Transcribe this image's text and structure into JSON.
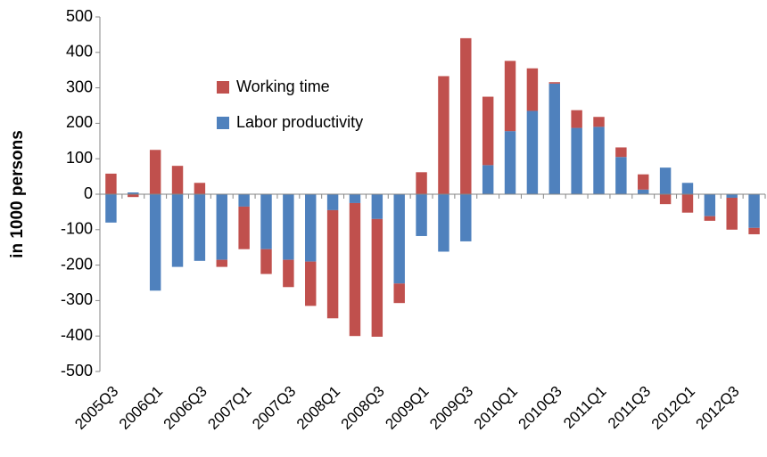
{
  "chart_data": {
    "type": "bar",
    "stacked": true,
    "y_label": "in 1000 persons",
    "categories": [
      "2005Q3",
      null,
      "2006Q1",
      null,
      "2006Q3",
      null,
      "2007Q1",
      null,
      "2007Q3",
      null,
      "2008Q1",
      null,
      "2008Q3",
      null,
      "2009Q1",
      null,
      "2009Q3",
      null,
      "2010Q1",
      null,
      "2010Q3",
      null,
      "2011Q1",
      null,
      "2011Q3",
      null,
      "2012Q1",
      null,
      "2012Q3",
      null
    ],
    "series": [
      {
        "name": "Working time",
        "color": "#c0504d",
        "values": [
          58,
          -8,
          125,
          80,
          32,
          -20,
          -120,
          -70,
          -77,
          -125,
          -305,
          -375,
          -332,
          -55,
          62,
          333,
          440,
          193,
          198,
          120,
          4,
          50,
          28,
          27,
          43,
          -28,
          -52,
          -13,
          -90,
          -18
        ]
      },
      {
        "name": "Labor productivity",
        "color": "#4f81bd",
        "values": [
          -80,
          5,
          -272,
          -205,
          -188,
          -185,
          -35,
          -155,
          -185,
          -190,
          -45,
          -25,
          -70,
          -252,
          -118,
          -162,
          -133,
          82,
          178,
          235,
          312,
          187,
          190,
          105,
          13,
          75,
          32,
          -62,
          -10,
          -95
        ]
      }
    ],
    "ylim": [
      -500,
      500
    ],
    "yticks": [
      -500,
      -400,
      -300,
      -200,
      -100,
      0,
      100,
      200,
      300,
      400,
      500
    ]
  }
}
